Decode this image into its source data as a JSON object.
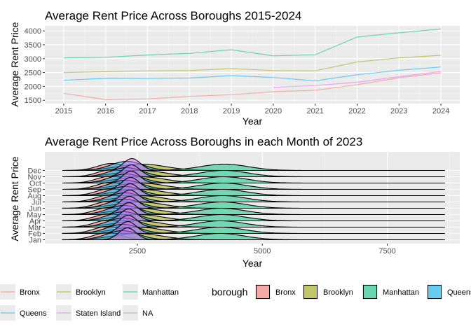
{
  "chart_data": [
    {
      "type": "line",
      "title": "Average Rent Price Across Boroughs 2015-2024",
      "xlabel": "Year",
      "ylabel": "Average Rent Price",
      "xlim": [
        2014.55,
        2024.45
      ],
      "ylim": [
        1380,
        4180
      ],
      "x_ticks": [
        2015,
        2016,
        2017,
        2018,
        2019,
        2020,
        2021,
        2022,
        2023,
        2024
      ],
      "y_ticks": [
        1500,
        2000,
        2500,
        3000,
        3500,
        4000
      ],
      "grid": true,
      "series": [
        {
          "name": "Bronx",
          "color": "#F8766D",
          "x": [
            2015,
            2016,
            2017,
            2018,
            2019,
            2020,
            2021,
            2022,
            2023,
            2024
          ],
          "values": [
            1750,
            1520,
            1550,
            1640,
            1700,
            1810,
            1860,
            2060,
            2310,
            2490
          ]
        },
        {
          "name": "Brooklyn",
          "color": "#A3A500",
          "x": [
            2015,
            2016,
            2017,
            2018,
            2019,
            2020,
            2021,
            2022,
            2023,
            2024
          ],
          "values": [
            2500,
            2530,
            2560,
            2570,
            2640,
            2570,
            2560,
            2880,
            3030,
            3120
          ]
        },
        {
          "name": "Manhattan",
          "color": "#00BF7D",
          "x": [
            2015,
            2016,
            2017,
            2018,
            2019,
            2020,
            2021,
            2022,
            2023,
            2024
          ],
          "values": [
            3030,
            3050,
            3130,
            3190,
            3320,
            3100,
            3140,
            3780,
            3930,
            4070
          ]
        },
        {
          "name": "Queens",
          "color": "#00B0F6",
          "x": [
            2015,
            2016,
            2017,
            2018,
            2019,
            2020,
            2021,
            2022,
            2023,
            2024
          ],
          "values": [
            2220,
            2290,
            2280,
            2300,
            2390,
            2320,
            2200,
            2420,
            2580,
            2700
          ]
        },
        {
          "name": "Staten Island",
          "color": "#E76BF3",
          "x": [
            2020,
            2021,
            2022,
            2023,
            2024
          ],
          "values": [
            1970,
            2030,
            2150,
            2350,
            2540
          ]
        },
        {
          "name": "NA",
          "color": "#999999",
          "x": [],
          "values": []
        }
      ],
      "legend": {
        "position": "bottom",
        "title": ""
      }
    },
    {
      "type": "ridgeline",
      "title": "Average Rent Price Across Boroughs in each Month of 2023",
      "xlabel": "Year",
      "ylabel": "Average Rent Price",
      "xlim": [
        650,
        8950
      ],
      "x_ticks": [
        2500,
        5000,
        7500
      ],
      "grid": true,
      "categories": [
        "Jan",
        "Feb",
        "Mar",
        "Apr",
        "May",
        "Jun",
        "Jul",
        "Aug",
        "Sep",
        "Oct",
        "Nov",
        "Dec"
      ],
      "x_range": [
        1000,
        8650
      ],
      "series": [
        {
          "name": "Bronx",
          "color": "#F8766D",
          "mode": 1950,
          "spread": 280
        },
        {
          "name": "Brooklyn",
          "color": "#A3A500",
          "mode": 2550,
          "spread": 480
        },
        {
          "name": "Manhattan",
          "color": "#00BF7D",
          "mode": 4200,
          "spread": 480
        },
        {
          "name": "Queens",
          "color": "#00B0F6",
          "mode": 2250,
          "spread": 320
        },
        {
          "name": "Staten Island",
          "color": "#E76BF3",
          "mode": 2350,
          "spread": 170
        }
      ],
      "legend": {
        "position": "bottom",
        "title": "borough",
        "entries": [
          "Bronx",
          "Brooklyn",
          "Manhattan",
          "Queens"
        ]
      }
    }
  ]
}
